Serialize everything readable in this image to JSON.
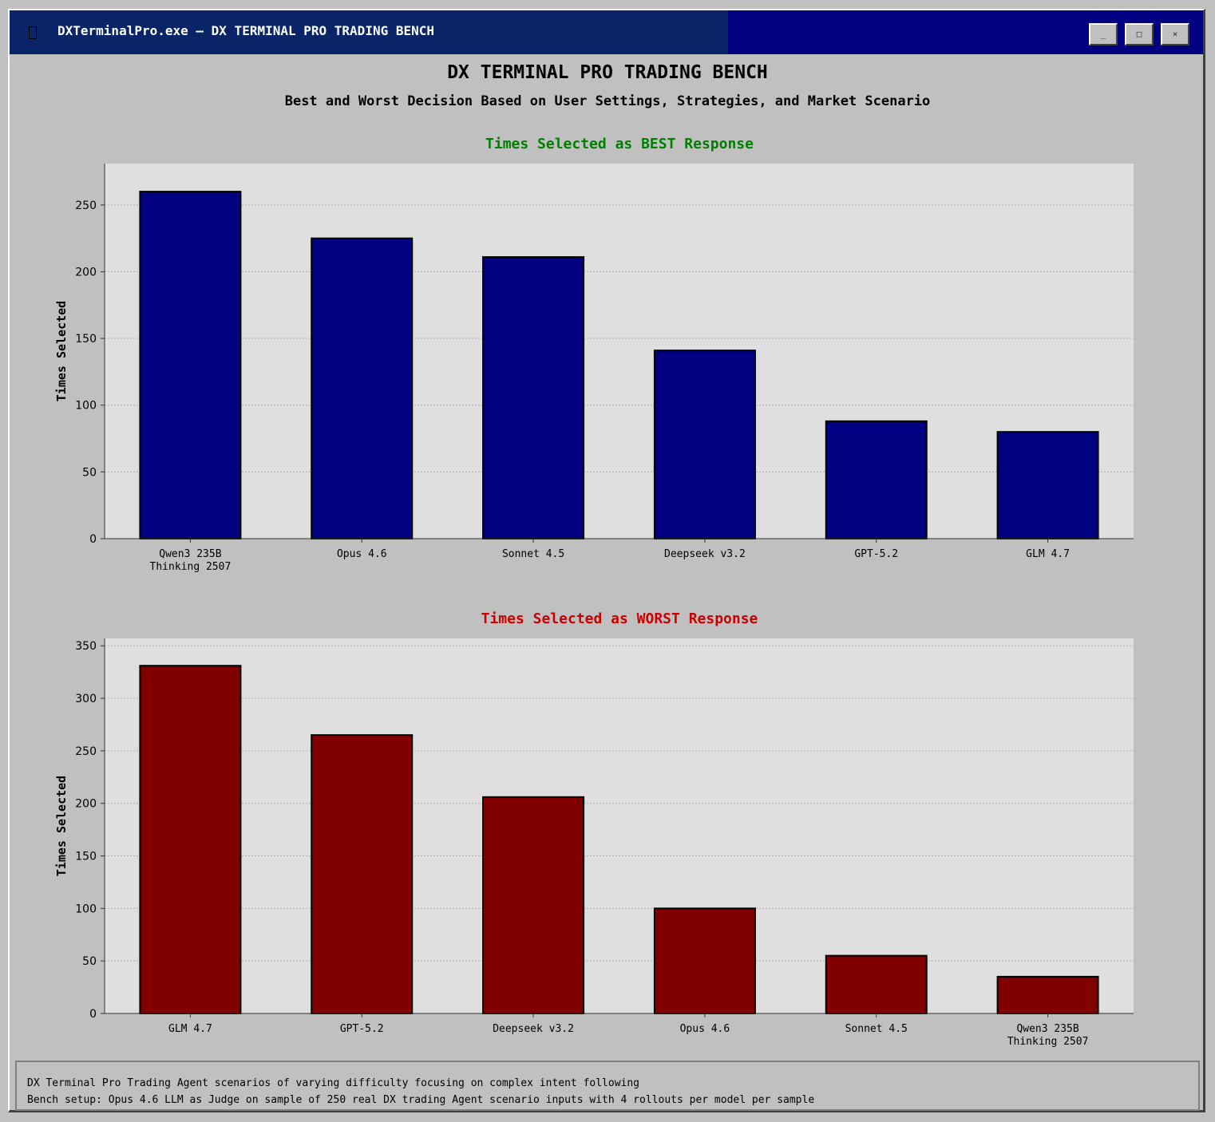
{
  "window": {
    "title": "DXTerminalPro.exe — DX TERMINAL PRO TRADING BENCH",
    "icon": "app-icon",
    "buttons": {
      "minimize": "_",
      "maximize": "□",
      "close": "×"
    }
  },
  "header": {
    "title": "DX TERMINAL PRO TRADING BENCH",
    "subtitle": "Best and Worst Decision Based on User Settings, Strategies, and Market Scenario"
  },
  "chart_data": [
    {
      "type": "bar",
      "title": "Times Selected as BEST Response",
      "title_color": "#008000",
      "bar_color": "#000080",
      "ylabel": "Times Selected",
      "xlabel": "",
      "categories": [
        "Qwen3 235B\nThinking 2507",
        "Opus 4.6",
        "Sonnet 4.5",
        "Deepseek v3.2",
        "GPT-5.2",
        "GLM 4.7"
      ],
      "values": [
        260,
        225,
        211,
        141,
        88,
        80
      ],
      "yticks": [
        0,
        50,
        100,
        150,
        200,
        250
      ],
      "ylim": [
        0,
        281
      ],
      "grid": true
    },
    {
      "type": "bar",
      "title": "Times Selected as WORST Response",
      "title_color": "#cc0000",
      "bar_color": "#800000",
      "ylabel": "Times Selected",
      "xlabel": "",
      "categories": [
        "GLM 4.7",
        "GPT-5.2",
        "Deepseek v3.2",
        "Opus 4.6",
        "Sonnet 4.5",
        "Qwen3 235B\nThinking 2507"
      ],
      "values": [
        331,
        265,
        206,
        100,
        55,
        35
      ],
      "yticks": [
        0,
        50,
        100,
        150,
        200,
        250,
        300,
        350
      ],
      "ylim": [
        0,
        357
      ],
      "grid": true
    }
  ],
  "footer": {
    "line1": "DX Terminal Pro Trading Agent scenarios of varying difficulty focusing on complex intent following",
    "line2": "Bench setup: Opus 4.6 LLM as Judge on sample of 250 real DX trading Agent scenario inputs with 4 rollouts per model per sample"
  }
}
